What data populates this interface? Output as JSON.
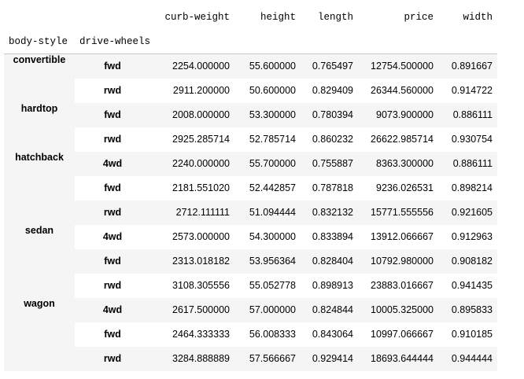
{
  "table": {
    "columns": [
      "curb-weight",
      "height",
      "length",
      "price",
      "width"
    ],
    "index_names": [
      "body-style",
      "drive-wheels"
    ],
    "groups": [
      {
        "body_style": "convertible",
        "rows": [
          {
            "drive_wheels": "fwd",
            "values": [
              "2254.000000",
              "55.600000",
              "0.765497",
              "12754.500000",
              "0.891667"
            ]
          },
          {
            "drive_wheels": "rwd",
            "values": [
              "2911.200000",
              "50.600000",
              "0.829409",
              "26344.560000",
              "0.914722"
            ]
          }
        ]
      },
      {
        "body_style": "hardtop",
        "rows": [
          {
            "drive_wheels": "fwd",
            "values": [
              "2008.000000",
              "53.300000",
              "0.780394",
              "9073.900000",
              "0.886111"
            ]
          },
          {
            "drive_wheels": "rwd",
            "values": [
              "2925.285714",
              "52.785714",
              "0.860232",
              "26622.985714",
              "0.930754"
            ]
          }
        ]
      },
      {
        "body_style": "hatchback",
        "rows": [
          {
            "drive_wheels": "4wd",
            "values": [
              "2240.000000",
              "55.700000",
              "0.755887",
              "8363.300000",
              "0.886111"
            ]
          },
          {
            "drive_wheels": "fwd",
            "values": [
              "2181.551020",
              "52.442857",
              "0.787818",
              "9236.026531",
              "0.898214"
            ]
          },
          {
            "drive_wheels": "rwd",
            "values": [
              "2712.111111",
              "51.094444",
              "0.832132",
              "15771.555556",
              "0.921605"
            ]
          }
        ]
      },
      {
        "body_style": "sedan",
        "rows": [
          {
            "drive_wheels": "4wd",
            "values": [
              "2573.000000",
              "54.300000",
              "0.833894",
              "13912.066667",
              "0.912963"
            ]
          },
          {
            "drive_wheels": "fwd",
            "values": [
              "2313.018182",
              "53.956364",
              "0.828404",
              "10792.980000",
              "0.908182"
            ]
          },
          {
            "drive_wheels": "rwd",
            "values": [
              "3108.305556",
              "55.052778",
              "0.898913",
              "23883.016667",
              "0.941435"
            ]
          }
        ]
      },
      {
        "body_style": "wagon",
        "rows": [
          {
            "drive_wheels": "4wd",
            "values": [
              "2617.500000",
              "57.000000",
              "0.824844",
              "10005.325000",
              "0.895833"
            ]
          },
          {
            "drive_wheels": "fwd",
            "values": [
              "2464.333333",
              "56.008333",
              "0.843064",
              "10997.066667",
              "0.910185"
            ]
          },
          {
            "drive_wheels": "rwd",
            "values": [
              "3284.888889",
              "57.566667",
              "0.929414",
              "18693.644444",
              "0.944444"
            ]
          }
        ]
      }
    ]
  },
  "colors": {
    "stripe": "#f5f5f5",
    "background": "#ffffff",
    "header_rule": "#c8c8c8",
    "text": "#000000"
  }
}
